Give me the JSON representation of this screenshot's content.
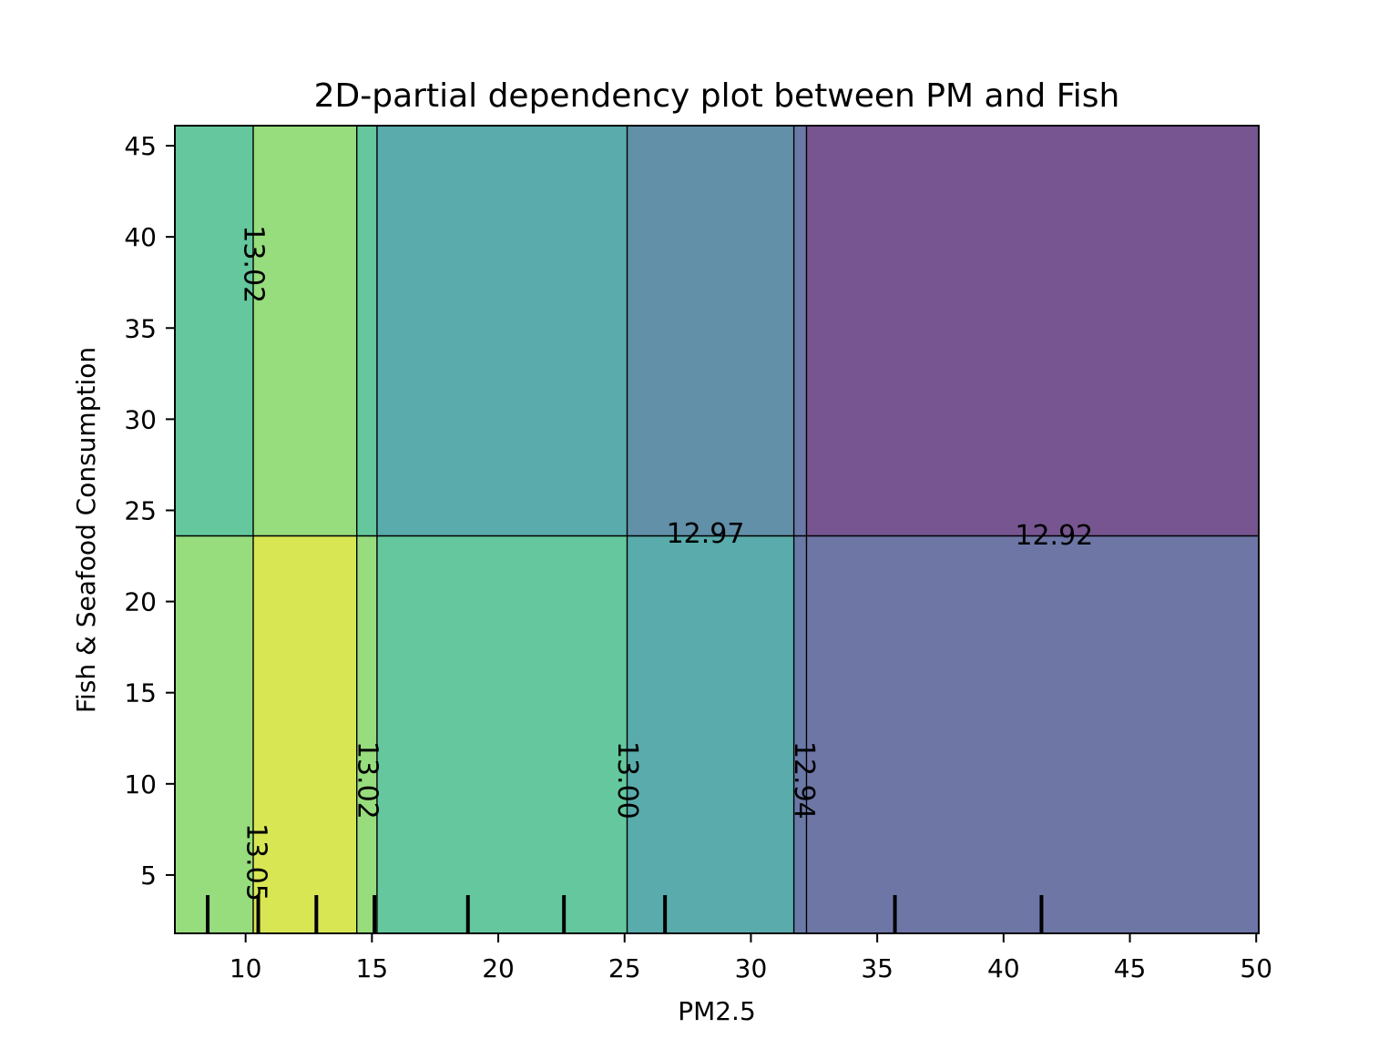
{
  "chart_data": {
    "type": "contour",
    "title": "2D-partial dependency plot between PM and Fish",
    "xlabel": "PM2.5",
    "ylabel": "Fish & Seafood Consumption",
    "xlim": [
      7.2,
      50.1
    ],
    "ylim": [
      1.8,
      46.1
    ],
    "x_ticks": [
      10,
      15,
      20,
      25,
      30,
      35,
      40,
      45,
      50
    ],
    "y_ticks": [
      5,
      10,
      15,
      20,
      25,
      30,
      35,
      40,
      45
    ],
    "x_tick_labels": [
      "10",
      "15",
      "20",
      "25",
      "30",
      "35",
      "40",
      "45",
      "50"
    ],
    "y_tick_labels": [
      "5",
      "10",
      "15",
      "20",
      "25",
      "30",
      "35",
      "40",
      "45"
    ],
    "x_breaks": [
      10.3,
      14.4,
      15.2,
      25.1,
      31.7,
      32.2
    ],
    "y_breaks": [
      23.6
    ],
    "regions": [
      {
        "x": [
          7.2,
          10.3
        ],
        "y": [
          1.8,
          23.6
        ],
        "color": "#97dc7d"
      },
      {
        "x": [
          10.3,
          14.4
        ],
        "y": [
          1.8,
          23.6
        ],
        "color": "#d8e654"
      },
      {
        "x": [
          14.4,
          15.2
        ],
        "y": [
          1.8,
          23.6
        ],
        "color": "#97dc7d"
      },
      {
        "x": [
          15.2,
          25.1
        ],
        "y": [
          1.8,
          23.6
        ],
        "color": "#64c79d"
      },
      {
        "x": [
          25.1,
          31.7
        ],
        "y": [
          1.8,
          23.6
        ],
        "color": "#5aabab"
      },
      {
        "x": [
          31.7,
          32.2
        ],
        "y": [
          1.8,
          23.6
        ],
        "color": "#6a79a6"
      },
      {
        "x": [
          32.2,
          50.1
        ],
        "y": [
          1.8,
          23.6
        ],
        "color": "#6e76a6"
      },
      {
        "x": [
          7.2,
          10.3
        ],
        "y": [
          23.6,
          46.1
        ],
        "color": "#64c79d"
      },
      {
        "x": [
          10.3,
          14.4
        ],
        "y": [
          23.6,
          46.1
        ],
        "color": "#97dc7d"
      },
      {
        "x": [
          14.4,
          15.2
        ],
        "y": [
          23.6,
          46.1
        ],
        "color": "#64c79d"
      },
      {
        "x": [
          15.2,
          25.1
        ],
        "y": [
          23.6,
          46.1
        ],
        "color": "#5aabab"
      },
      {
        "x": [
          25.1,
          31.7
        ],
        "y": [
          23.6,
          46.1
        ],
        "color": "#6190a8"
      },
      {
        "x": [
          31.7,
          32.2
        ],
        "y": [
          23.6,
          46.1
        ],
        "color": "#6a79a6"
      },
      {
        "x": [
          32.2,
          50.1
        ],
        "y": [
          23.6,
          46.1
        ],
        "color": "#765590"
      }
    ],
    "contour_labels": [
      {
        "text": "13.02",
        "x": 10.3,
        "y": 38.5,
        "rotation": 90
      },
      {
        "text": "12.97",
        "x": 28.2,
        "y": 23.7,
        "rotation": 0
      },
      {
        "text": "12.92",
        "x": 42.0,
        "y": 23.6,
        "rotation": 0
      },
      {
        "text": "13.02",
        "x": 14.8,
        "y": 10.2,
        "rotation": 90
      },
      {
        "text": "13.00",
        "x": 25.1,
        "y": 10.2,
        "rotation": 90
      },
      {
        "text": "12.94",
        "x": 32.1,
        "y": 10.2,
        "rotation": 90
      },
      {
        "text": "13.05",
        "x": 10.4,
        "y": 5.7,
        "rotation": 90
      }
    ],
    "rug_x": [
      8.5,
      10.5,
      12.8,
      15.1,
      18.8,
      22.6,
      26.6,
      35.7,
      41.5
    ],
    "colormap": "viridis"
  }
}
